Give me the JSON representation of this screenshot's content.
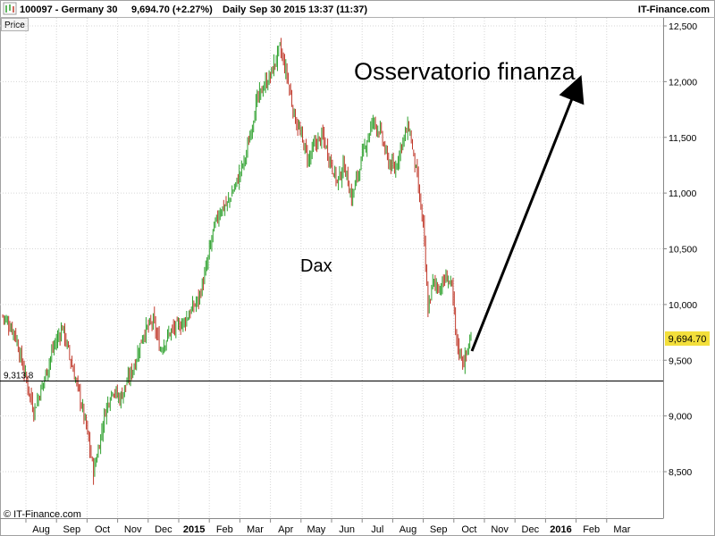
{
  "header": {
    "symbol": "100097 - Germany 30",
    "quote": "9,694.70 (+2.27%)",
    "period": "Daily",
    "datetime": "Sep 30 2015 13:37 (11:37)",
    "brand": "IT-Finance.com"
  },
  "price_tab": "Price",
  "copyright": "© IT-Finance.com",
  "colors": {
    "up": "#2ca02c",
    "down": "#c0392b",
    "last_badge": "#f3df3b",
    "grid": "#d6d6d6"
  },
  "chart_data": {
    "type": "candlestick",
    "y_ticks": [
      "12,500",
      "12,000",
      "11,500",
      "11,000",
      "10,500",
      "10,000",
      "9,500",
      "9,000",
      "8,500"
    ],
    "y_tick_values": [
      12500,
      12000,
      11500,
      11000,
      10500,
      10000,
      9500,
      9000,
      8500
    ],
    "ylim": [
      8200,
      12550
    ],
    "x_ticks": [
      {
        "label": "Aug",
        "bold": false
      },
      {
        "label": "Sep",
        "bold": false
      },
      {
        "label": "Oct",
        "bold": false
      },
      {
        "label": "Nov",
        "bold": false
      },
      {
        "label": "Dec",
        "bold": false
      },
      {
        "label": "2015",
        "bold": true
      },
      {
        "label": "Feb",
        "bold": false
      },
      {
        "label": "Mar",
        "bold": false
      },
      {
        "label": "Apr",
        "bold": false
      },
      {
        "label": "May",
        "bold": false
      },
      {
        "label": "Jun",
        "bold": false
      },
      {
        "label": "Jul",
        "bold": false
      },
      {
        "label": "Aug",
        "bold": false
      },
      {
        "label": "Sep",
        "bold": false
      },
      {
        "label": "Oct",
        "bold": false
      },
      {
        "label": "Nov",
        "bold": false
      },
      {
        "label": "Dec",
        "bold": false
      },
      {
        "label": "2016",
        "bold": true
      },
      {
        "label": "Feb",
        "bold": false
      },
      {
        "label": "Mar",
        "bold": false
      }
    ],
    "last_price": 9694.7,
    "last_price_label": "9,694.70",
    "support_level": 9313.8,
    "support_label": "9,313.8",
    "annotations": {
      "title": "Osservatorio finanza",
      "series_label": "Dax"
    },
    "close_path": [
      [
        0,
        9900
      ],
      [
        10,
        9750
      ],
      [
        18,
        9400
      ],
      [
        26,
        9050
      ],
      [
        34,
        9300
      ],
      [
        42,
        9600
      ],
      [
        50,
        9800
      ],
      [
        58,
        9450
      ],
      [
        64,
        9200
      ],
      [
        70,
        8900
      ],
      [
        76,
        8500
      ],
      [
        80,
        8700
      ],
      [
        86,
        9050
      ],
      [
        92,
        9250
      ],
      [
        98,
        9150
      ],
      [
        104,
        9300
      ],
      [
        110,
        9450
      ],
      [
        118,
        9750
      ],
      [
        126,
        9850
      ],
      [
        132,
        9600
      ],
      [
        140,
        9750
      ],
      [
        146,
        9800
      ],
      [
        152,
        9850
      ],
      [
        158,
        9950
      ],
      [
        164,
        10050
      ],
      [
        170,
        10300
      ],
      [
        176,
        10650
      ],
      [
        182,
        10850
      ],
      [
        188,
        10900
      ],
      [
        196,
        11100
      ],
      [
        204,
        11350
      ],
      [
        212,
        11800
      ],
      [
        218,
        11950
      ],
      [
        224,
        12050
      ],
      [
        232,
        12300
      ],
      [
        238,
        12050
      ],
      [
        244,
        11700
      ],
      [
        250,
        11500
      ],
      [
        256,
        11300
      ],
      [
        262,
        11450
      ],
      [
        268,
        11500
      ],
      [
        274,
        11300
      ],
      [
        280,
        11100
      ],
      [
        286,
        11250
      ],
      [
        292,
        10950
      ],
      [
        298,
        11200
      ],
      [
        304,
        11450
      ],
      [
        310,
        11650
      ],
      [
        316,
        11550
      ],
      [
        322,
        11300
      ],
      [
        328,
        11200
      ],
      [
        334,
        11450
      ],
      [
        340,
        11600
      ],
      [
        346,
        11200
      ],
      [
        352,
        10700
      ],
      [
        356,
        9950
      ],
      [
        360,
        10200
      ],
      [
        366,
        10150
      ],
      [
        372,
        10250
      ],
      [
        376,
        10150
      ],
      [
        380,
        9650
      ],
      [
        386,
        9480
      ],
      [
        392,
        9694.7
      ]
    ],
    "date_range": [
      "2014-07-01",
      "2015-09-30"
    ]
  }
}
